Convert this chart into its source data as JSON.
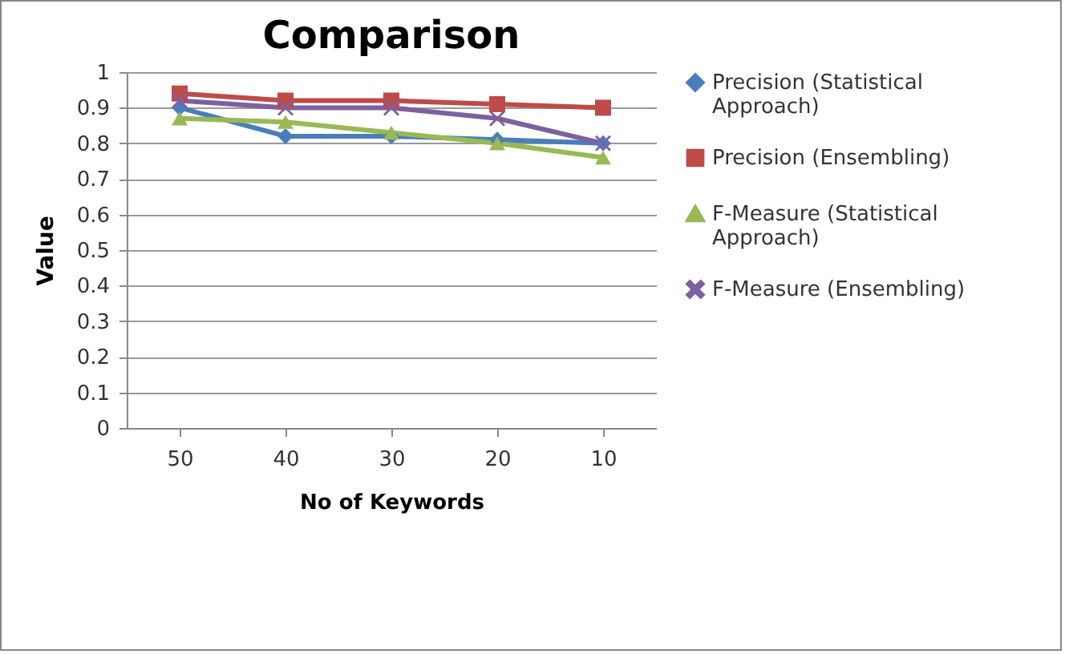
{
  "chart_data": {
    "type": "line",
    "title": "Comparison",
    "xlabel": "No of Keywords",
    "ylabel": "Value",
    "categories": [
      "50",
      "40",
      "30",
      "20",
      "10"
    ],
    "series": [
      {
        "name": "Precision  (Statistical Approach)",
        "color": "#4a7ebb",
        "marker": "diamond",
        "values": [
          0.9,
          0.82,
          0.82,
          0.81,
          0.8
        ]
      },
      {
        "name": "Precision (Ensembling)",
        "color": "#be4b48",
        "marker": "square",
        "values": [
          0.94,
          0.92,
          0.92,
          0.91,
          0.9
        ]
      },
      {
        "name": "F-Measure (Statistical Approach)",
        "color": "#98b954",
        "marker": "triangle",
        "values": [
          0.87,
          0.86,
          0.83,
          0.8,
          0.76
        ]
      },
      {
        "name": "F-Measure (Ensembling)",
        "color": "#7d60a0",
        "marker": "cross",
        "values": [
          0.92,
          0.9,
          0.9,
          0.87,
          0.8
        ]
      }
    ],
    "ylim": [
      0,
      1
    ],
    "yticks": [
      0,
      0.1,
      0.2,
      0.3,
      0.4,
      0.5,
      0.6,
      0.7,
      0.8,
      0.9,
      1
    ],
    "grid": "y",
    "legend": "right"
  }
}
